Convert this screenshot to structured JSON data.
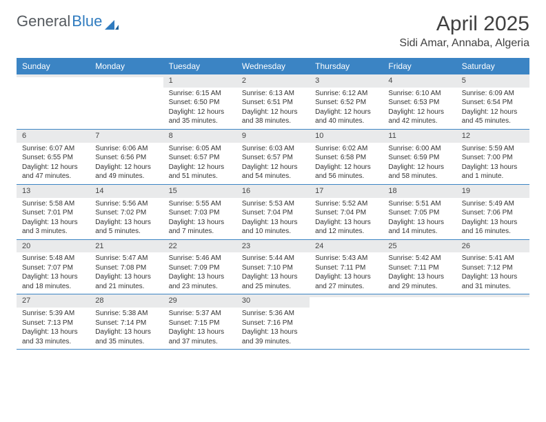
{
  "logo": {
    "text1": "General",
    "text2": "Blue"
  },
  "title": "April 2025",
  "location": "Sidi Amar, Annaba, Algeria",
  "colors": {
    "header_bg": "#3b84c4",
    "header_text": "#ffffff",
    "daynum_bg": "#e9eaeb",
    "border": "#3b84c4",
    "body_text": "#333333",
    "page_bg": "#ffffff"
  },
  "weekdays": [
    "Sunday",
    "Monday",
    "Tuesday",
    "Wednesday",
    "Thursday",
    "Friday",
    "Saturday"
  ],
  "weeks": [
    [
      {
        "n": "",
        "sunrise": "",
        "sunset": "",
        "daylight": ""
      },
      {
        "n": "",
        "sunrise": "",
        "sunset": "",
        "daylight": ""
      },
      {
        "n": "1",
        "sunrise": "Sunrise: 6:15 AM",
        "sunset": "Sunset: 6:50 PM",
        "daylight": "Daylight: 12 hours and 35 minutes."
      },
      {
        "n": "2",
        "sunrise": "Sunrise: 6:13 AM",
        "sunset": "Sunset: 6:51 PM",
        "daylight": "Daylight: 12 hours and 38 minutes."
      },
      {
        "n": "3",
        "sunrise": "Sunrise: 6:12 AM",
        "sunset": "Sunset: 6:52 PM",
        "daylight": "Daylight: 12 hours and 40 minutes."
      },
      {
        "n": "4",
        "sunrise": "Sunrise: 6:10 AM",
        "sunset": "Sunset: 6:53 PM",
        "daylight": "Daylight: 12 hours and 42 minutes."
      },
      {
        "n": "5",
        "sunrise": "Sunrise: 6:09 AM",
        "sunset": "Sunset: 6:54 PM",
        "daylight": "Daylight: 12 hours and 45 minutes."
      }
    ],
    [
      {
        "n": "6",
        "sunrise": "Sunrise: 6:07 AM",
        "sunset": "Sunset: 6:55 PM",
        "daylight": "Daylight: 12 hours and 47 minutes."
      },
      {
        "n": "7",
        "sunrise": "Sunrise: 6:06 AM",
        "sunset": "Sunset: 6:56 PM",
        "daylight": "Daylight: 12 hours and 49 minutes."
      },
      {
        "n": "8",
        "sunrise": "Sunrise: 6:05 AM",
        "sunset": "Sunset: 6:57 PM",
        "daylight": "Daylight: 12 hours and 51 minutes."
      },
      {
        "n": "9",
        "sunrise": "Sunrise: 6:03 AM",
        "sunset": "Sunset: 6:57 PM",
        "daylight": "Daylight: 12 hours and 54 minutes."
      },
      {
        "n": "10",
        "sunrise": "Sunrise: 6:02 AM",
        "sunset": "Sunset: 6:58 PM",
        "daylight": "Daylight: 12 hours and 56 minutes."
      },
      {
        "n": "11",
        "sunrise": "Sunrise: 6:00 AM",
        "sunset": "Sunset: 6:59 PM",
        "daylight": "Daylight: 12 hours and 58 minutes."
      },
      {
        "n": "12",
        "sunrise": "Sunrise: 5:59 AM",
        "sunset": "Sunset: 7:00 PM",
        "daylight": "Daylight: 13 hours and 1 minute."
      }
    ],
    [
      {
        "n": "13",
        "sunrise": "Sunrise: 5:58 AM",
        "sunset": "Sunset: 7:01 PM",
        "daylight": "Daylight: 13 hours and 3 minutes."
      },
      {
        "n": "14",
        "sunrise": "Sunrise: 5:56 AM",
        "sunset": "Sunset: 7:02 PM",
        "daylight": "Daylight: 13 hours and 5 minutes."
      },
      {
        "n": "15",
        "sunrise": "Sunrise: 5:55 AM",
        "sunset": "Sunset: 7:03 PM",
        "daylight": "Daylight: 13 hours and 7 minutes."
      },
      {
        "n": "16",
        "sunrise": "Sunrise: 5:53 AM",
        "sunset": "Sunset: 7:04 PM",
        "daylight": "Daylight: 13 hours and 10 minutes."
      },
      {
        "n": "17",
        "sunrise": "Sunrise: 5:52 AM",
        "sunset": "Sunset: 7:04 PM",
        "daylight": "Daylight: 13 hours and 12 minutes."
      },
      {
        "n": "18",
        "sunrise": "Sunrise: 5:51 AM",
        "sunset": "Sunset: 7:05 PM",
        "daylight": "Daylight: 13 hours and 14 minutes."
      },
      {
        "n": "19",
        "sunrise": "Sunrise: 5:49 AM",
        "sunset": "Sunset: 7:06 PM",
        "daylight": "Daylight: 13 hours and 16 minutes."
      }
    ],
    [
      {
        "n": "20",
        "sunrise": "Sunrise: 5:48 AM",
        "sunset": "Sunset: 7:07 PM",
        "daylight": "Daylight: 13 hours and 18 minutes."
      },
      {
        "n": "21",
        "sunrise": "Sunrise: 5:47 AM",
        "sunset": "Sunset: 7:08 PM",
        "daylight": "Daylight: 13 hours and 21 minutes."
      },
      {
        "n": "22",
        "sunrise": "Sunrise: 5:46 AM",
        "sunset": "Sunset: 7:09 PM",
        "daylight": "Daylight: 13 hours and 23 minutes."
      },
      {
        "n": "23",
        "sunrise": "Sunrise: 5:44 AM",
        "sunset": "Sunset: 7:10 PM",
        "daylight": "Daylight: 13 hours and 25 minutes."
      },
      {
        "n": "24",
        "sunrise": "Sunrise: 5:43 AM",
        "sunset": "Sunset: 7:11 PM",
        "daylight": "Daylight: 13 hours and 27 minutes."
      },
      {
        "n": "25",
        "sunrise": "Sunrise: 5:42 AM",
        "sunset": "Sunset: 7:11 PM",
        "daylight": "Daylight: 13 hours and 29 minutes."
      },
      {
        "n": "26",
        "sunrise": "Sunrise: 5:41 AM",
        "sunset": "Sunset: 7:12 PM",
        "daylight": "Daylight: 13 hours and 31 minutes."
      }
    ],
    [
      {
        "n": "27",
        "sunrise": "Sunrise: 5:39 AM",
        "sunset": "Sunset: 7:13 PM",
        "daylight": "Daylight: 13 hours and 33 minutes."
      },
      {
        "n": "28",
        "sunrise": "Sunrise: 5:38 AM",
        "sunset": "Sunset: 7:14 PM",
        "daylight": "Daylight: 13 hours and 35 minutes."
      },
      {
        "n": "29",
        "sunrise": "Sunrise: 5:37 AM",
        "sunset": "Sunset: 7:15 PM",
        "daylight": "Daylight: 13 hours and 37 minutes."
      },
      {
        "n": "30",
        "sunrise": "Sunrise: 5:36 AM",
        "sunset": "Sunset: 7:16 PM",
        "daylight": "Daylight: 13 hours and 39 minutes."
      },
      {
        "n": "",
        "sunrise": "",
        "sunset": "",
        "daylight": ""
      },
      {
        "n": "",
        "sunrise": "",
        "sunset": "",
        "daylight": ""
      },
      {
        "n": "",
        "sunrise": "",
        "sunset": "",
        "daylight": ""
      }
    ]
  ]
}
